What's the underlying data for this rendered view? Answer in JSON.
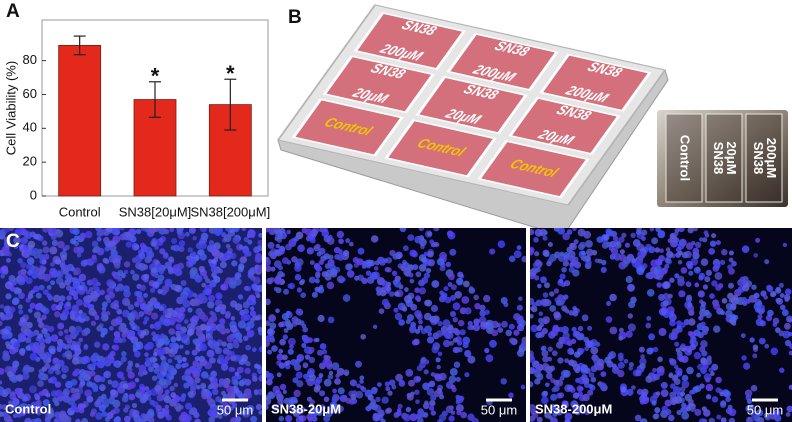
{
  "panels": {
    "a": "A",
    "b": "B",
    "c": "C"
  },
  "chart_data": {
    "type": "bar",
    "ylabel": "Cell Viability (%)",
    "categories": [
      "Control",
      "SN38[20μM]",
      "SN38[200μM]"
    ],
    "values": [
      89,
      57,
      54
    ],
    "errors": [
      5.5,
      10.5,
      15
    ],
    "significance": [
      null,
      "*",
      "*"
    ],
    "color": "#e3291b",
    "ylim": [
      0,
      104
    ],
    "yticks": [
      0,
      20,
      40,
      60,
      80
    ]
  },
  "diagram": {
    "wells": [
      [
        "SN38",
        "200μM"
      ],
      [
        "SN38",
        "200μM"
      ],
      [
        "SN38",
        "200μM"
      ],
      [
        "SN38",
        "20μM"
      ],
      [
        "SN38",
        "20μM"
      ],
      [
        "SN38",
        "20μM"
      ],
      [
        "Control"
      ],
      [
        "Control"
      ],
      [
        "Control"
      ]
    ]
  },
  "photo": {
    "labels": [
      [
        "Control"
      ],
      [
        "SN38",
        "20μM"
      ],
      [
        "SN38",
        "200μM"
      ]
    ]
  },
  "micrographs": [
    {
      "label": "Control",
      "scale": "50 μm"
    },
    {
      "label": "SN38-20μM",
      "scale": "50 μm"
    },
    {
      "label": "SN38-200μM",
      "scale": "50 μm"
    }
  ]
}
